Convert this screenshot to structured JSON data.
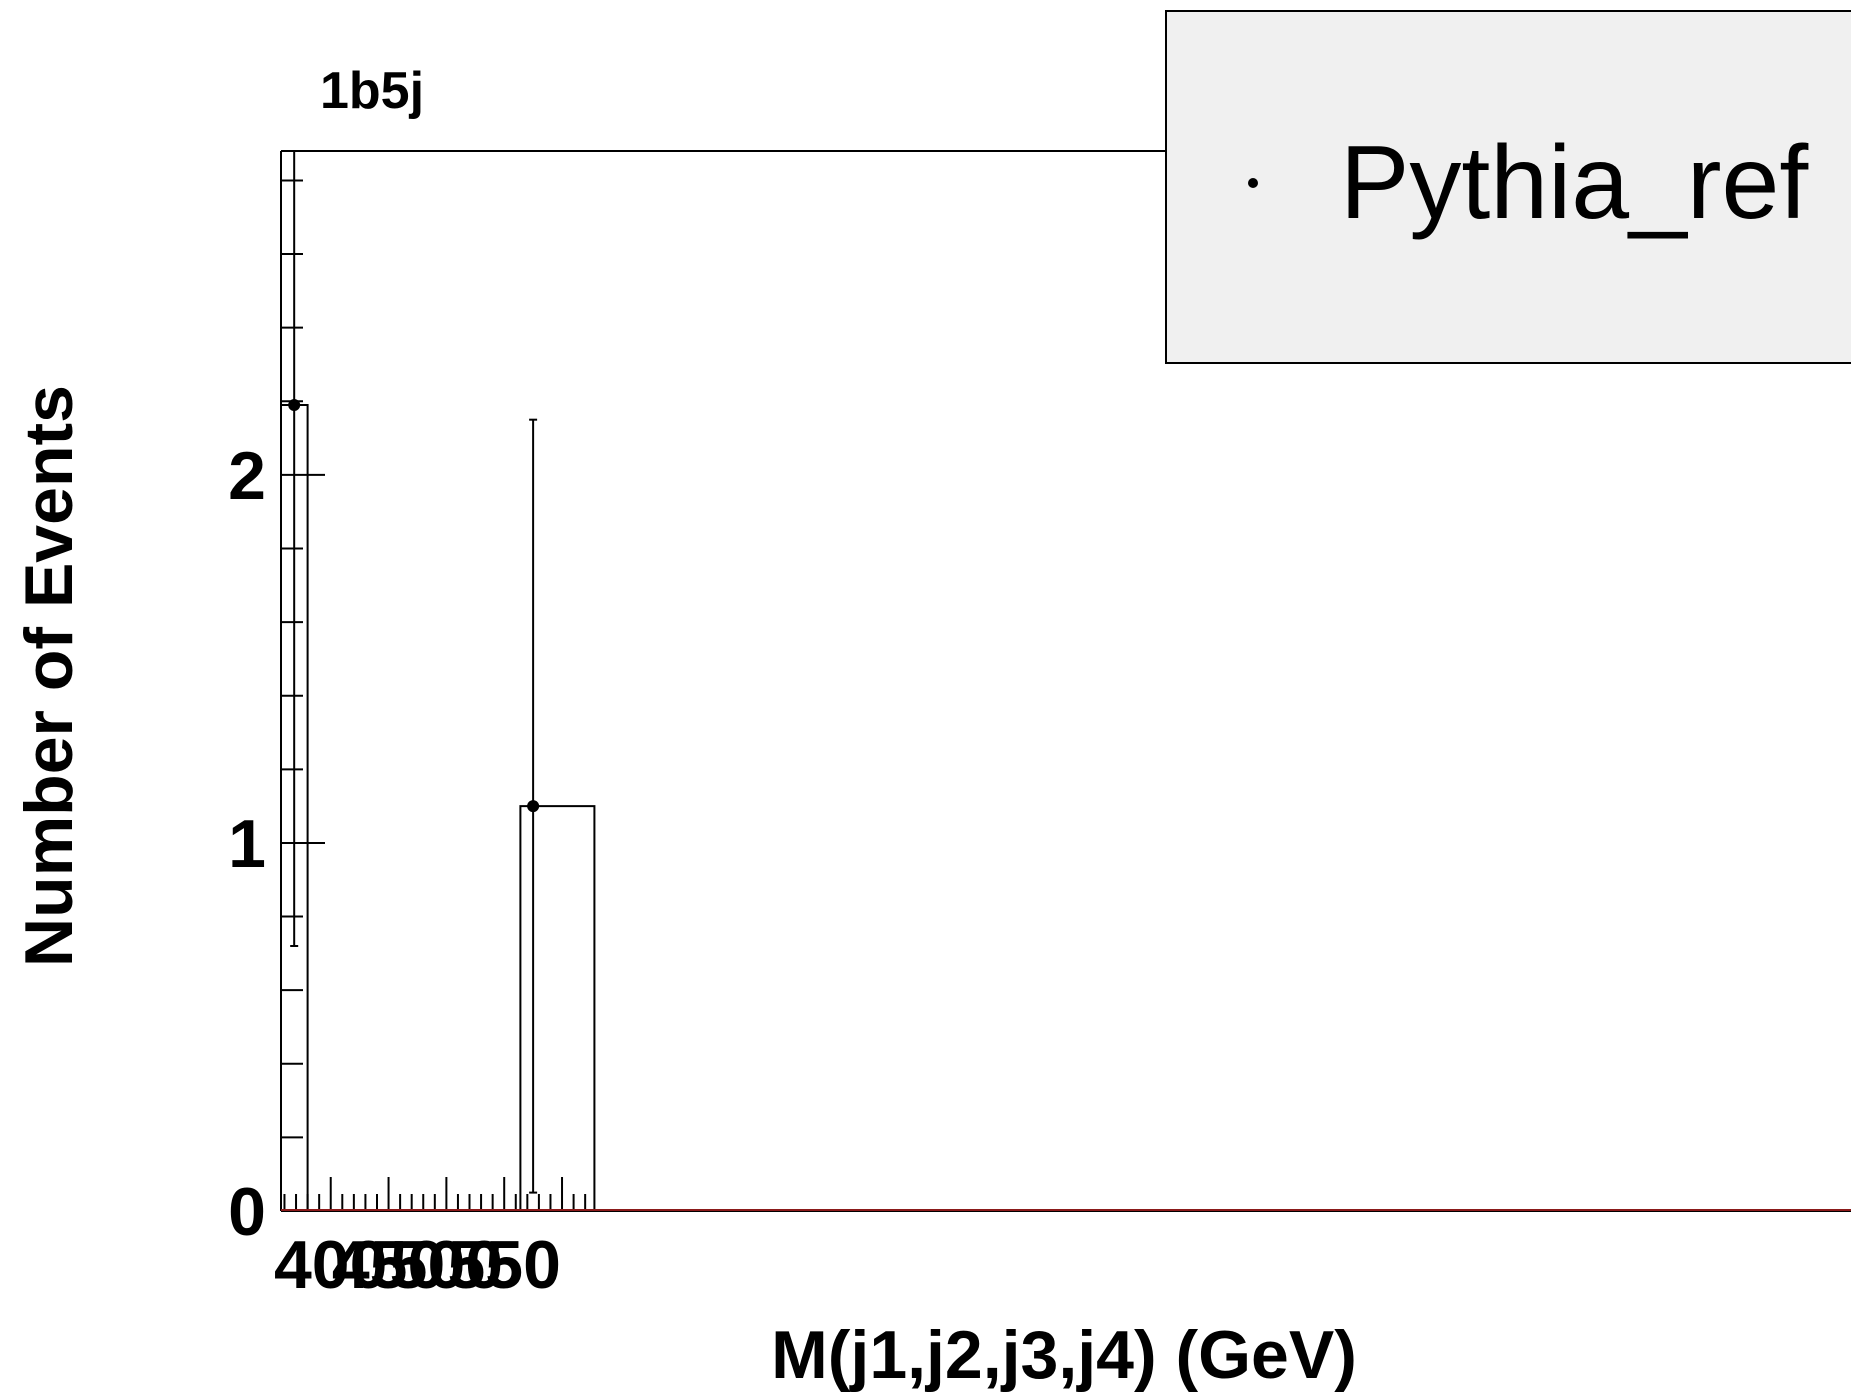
{
  "chart_data": {
    "type": "histogram",
    "title": "1b5j",
    "xlabel": "M(j1,j2,j3,j4) (GeV)",
    "ylabel": "Number of Events",
    "xlim": [
      357,
      628
    ],
    "ylim": [
      0,
      2.88
    ],
    "x_ticks": [
      400,
      450,
      500,
      550
    ],
    "y_ticks": [
      0,
      1,
      2
    ],
    "grid": false,
    "legend": {
      "position": "top-right",
      "entries": [
        "Pythia_ref"
      ]
    },
    "series": [
      {
        "name": "Pythia_ref",
        "marker": "point-with-error",
        "bins": [
          {
            "x_low": 357,
            "x_high": 380,
            "center": 368.4,
            "value": 2.19,
            "err_low": 1.47,
            "err_high": 2.69
          },
          {
            "x_low": 564,
            "x_high": 628,
            "center": 575.0,
            "value": 1.1,
            "err_low": 1.05,
            "err_high": 1.05
          }
        ]
      }
    ],
    "colors": {
      "axis": "#000000",
      "baseline": "#8b1a1a",
      "legend_bg": "#f0f0f0"
    }
  }
}
